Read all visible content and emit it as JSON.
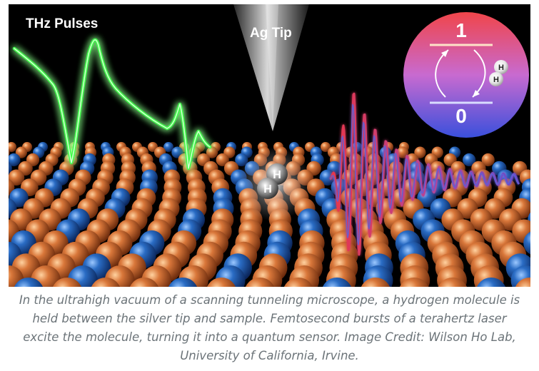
{
  "figure": {
    "label_thz": "THz Pulses",
    "label_tip": "Ag Tip",
    "level_upper": "1",
    "level_lower": "0",
    "molecule_atom_top": "H",
    "molecule_atom_bottom": "H",
    "inset_atom_top": "H",
    "inset_atom_bottom": "H",
    "colors": {
      "background": "#000000",
      "copper_atom": "#c8642a",
      "blue_atom": "#1e5fb4",
      "thz_pulse": "#38ff3c",
      "signal_red": "#e03a4a",
      "signal_blue": "#5a55c8",
      "inset_top": "#e8444a",
      "inset_bottom": "#3d52d8"
    }
  },
  "caption": {
    "text": "In the ultrahigh vacuum of a scanning tunneling microscope, a hydrogen molecule is held between the silver tip and sample. Femtosecond bursts of a terahertz laser excite the molecule, turning it into a quantum sensor. Image Credit: Wilson Ho Lab, University of California, Irvine."
  }
}
